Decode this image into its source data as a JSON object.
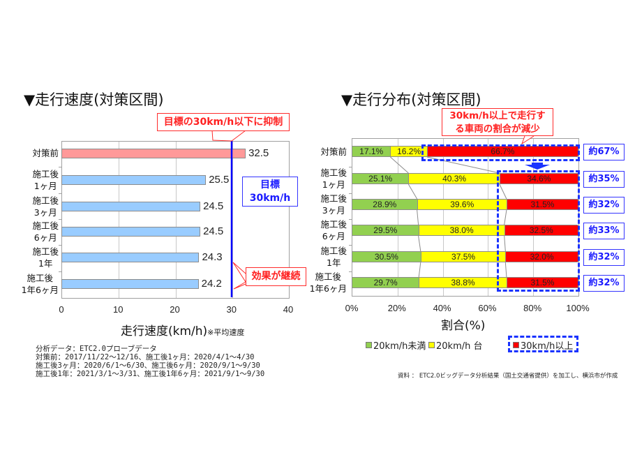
{
  "colors": {
    "before_bar": "#ff9999",
    "after_bar": "#99ccff",
    "target_line": "#0000ff",
    "green": "#92d050",
    "yellow": "#ffff00",
    "red": "#ff0000",
    "callout_red": "#ff2020",
    "blue_box": "#1a1aff"
  },
  "left": {
    "title": "▼走行速度(対策区間)",
    "callout_top": "目標の30km/h以下に抑制",
    "target_box": {
      "line1": "目標",
      "line2": "30km/h"
    },
    "callout_bottom": "効果が継続",
    "xlabel_main": "走行速度(km/h)",
    "xlabel_note": "※平均速度",
    "notes": [
      "分析データ：ETC2.0プローブデータ",
      "対策前：2017/11/22～12/16、施工後1ヶ月：2020/4/1～4/30",
      "施工後3ヶ月：2020/6/1～6/30、施工後6ヶ月：2020/9/1～9/30",
      "施工後1年：2021/3/1～3/31、施工後1年6ヶ月：2021/9/1～9/30"
    ]
  },
  "right": {
    "title": "▼走行分布(対策区間)",
    "callout": {
      "line1": "30km/h以上で走行す",
      "line2": "る車両の割合が減少"
    },
    "xlabel": "割合(%)",
    "source": "資料 ： ETC2.0ビッグデータ分析結果（国土交通省提供）を加工し、横浜市が作成",
    "approx_labels": [
      "約67%",
      "約35%",
      "約32%",
      "約33%",
      "約32%",
      "約32%"
    ]
  },
  "chart_data": [
    {
      "type": "bar",
      "orientation": "horizontal",
      "title": "▼走行速度(対策区間)",
      "categories": [
        "対策前",
        "施工後1ヶ月",
        "施工後3ヶ月",
        "施工後6ヶ月",
        "施工後1年",
        "施工後1年6ヶ月"
      ],
      "category_lines": [
        [
          "対策前"
        ],
        [
          "施工後",
          "1ヶ月"
        ],
        [
          "施工後",
          "3ヶ月"
        ],
        [
          "施工後",
          "6ヶ月"
        ],
        [
          "施工後",
          "1年"
        ],
        [
          "施工後",
          "1年6ヶ月"
        ]
      ],
      "values": [
        32.5,
        25.5,
        24.5,
        24.5,
        24.3,
        24.2
      ],
      "value_labels": [
        "32.5",
        "25.5",
        "24.5",
        "24.5",
        "24.3",
        "24.2"
      ],
      "xlabel": "走行速度(km/h)※平均速度",
      "ylabel": "",
      "xlim": [
        0,
        40
      ],
      "xticks": [
        "0",
        "10",
        "20",
        "30",
        "40"
      ],
      "reference_line": {
        "x": 30,
        "label": "目標 30km/h"
      },
      "grid": true,
      "annotations": [
        "目標の30km/h以下に抑制",
        "目標 30km/h",
        "効果が継続"
      ]
    },
    {
      "type": "bar",
      "stacked": true,
      "orientation": "horizontal",
      "title": "▼走行分布(対策区間)",
      "categories": [
        "対策前",
        "施工後1ヶ月",
        "施工後3ヶ月",
        "施工後6ヶ月",
        "施工後1年",
        "施工後1年6ヶ月"
      ],
      "category_lines": [
        [
          "対策前"
        ],
        [
          "施工後",
          "1ヶ月"
        ],
        [
          "施工後",
          "3ヶ月"
        ],
        [
          "施工後",
          "6ヶ月"
        ],
        [
          "施工後",
          "1年"
        ],
        [
          "施工後",
          "1年6ヶ月"
        ]
      ],
      "series": [
        {
          "name": "20km/h未満",
          "color": "#92d050",
          "values": [
            17.1,
            25.1,
            28.9,
            29.5,
            30.5,
            29.7
          ],
          "labels": [
            "17.1%",
            "25.1%",
            "28.9%",
            "29.5%",
            "30.5%",
            "29.7%"
          ]
        },
        {
          "name": "20km/h 台",
          "color": "#ffff00",
          "values": [
            16.2,
            40.3,
            39.6,
            38.0,
            37.5,
            38.8
          ],
          "labels": [
            "16.2%",
            "40.3%",
            "39.6%",
            "38.0%",
            "37.5%",
            "38.8%"
          ]
        },
        {
          "name": "30km/h以上",
          "color": "#ff0000",
          "values": [
            66.7,
            34.6,
            31.5,
            32.5,
            32.0,
            31.5
          ],
          "labels": [
            "66.7%",
            "34.6%",
            "31.5%",
            "32.5%",
            "32.0%",
            "31.5%"
          ]
        }
      ],
      "xlabel": "割合(%)",
      "xlim": [
        0,
        100
      ],
      "xticks": [
        "0%",
        "20%",
        "40%",
        "60%",
        "80%",
        "100%"
      ],
      "legend": {
        "position": "bottom",
        "entries": [
          "20km/h未満",
          "20km/h 台",
          "30km/h以上"
        ]
      },
      "grid": true,
      "annotations": [
        "30km/h以上で走行する車両の割合が減少",
        "約67%",
        "約35%",
        "約32%",
        "約33%",
        "約32%",
        "約32%"
      ]
    }
  ]
}
